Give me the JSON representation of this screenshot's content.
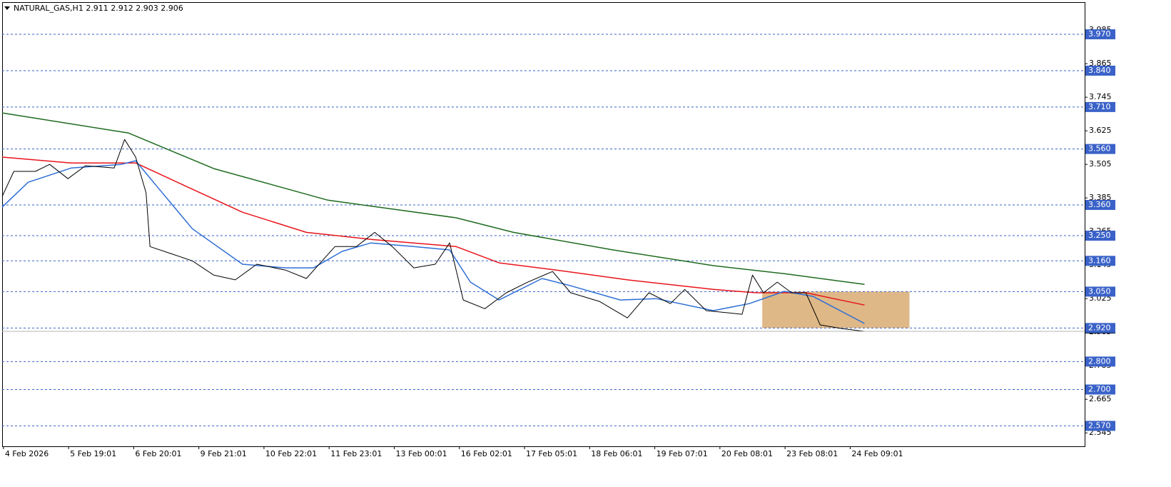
{
  "chart_data": {
    "type": "line",
    "title": "NATURAL_GAS,H1  2.911 2.912 2.903 2.906",
    "xlim": [
      -0.02,
      16.6
    ],
    "xticks": [
      {
        "value": 0,
        "label": "4 Feb 2026"
      },
      {
        "value": 1,
        "label": "5 Feb 19:01"
      },
      {
        "value": 2,
        "label": "6 Feb 20:01"
      },
      {
        "value": 3,
        "label": "9 Feb 21:01"
      },
      {
        "value": 4,
        "label": "10 Feb 22:01"
      },
      {
        "value": 5,
        "label": "11 Feb 23:01"
      },
      {
        "value": 6,
        "label": "13 Feb 00:01"
      },
      {
        "value": 7,
        "label": "16 Feb 02:01"
      },
      {
        "value": 8,
        "label": "17 Feb 05:01"
      },
      {
        "value": 9,
        "label": "18 Feb 06:01"
      },
      {
        "value": 10,
        "label": "19 Feb 07:01"
      },
      {
        "value": 11,
        "label": "20 Feb 08:01"
      },
      {
        "value": 12,
        "label": "23 Feb 08:01"
      },
      {
        "value": 13,
        "label": "24 Feb 09:01"
      }
    ],
    "ylim": [
      2.497,
      4.085
    ],
    "yticks": [
      3.985,
      3.865,
      3.745,
      3.625,
      3.505,
      3.385,
      3.265,
      3.145,
      3.025,
      2.905,
      2.785,
      2.665,
      2.545
    ],
    "levels_color": "#3a62c8",
    "levels": [
      {
        "value": 3.97,
        "label": "3.970"
      },
      {
        "value": 3.84,
        "label": "3.840"
      },
      {
        "value": 3.71,
        "label": "3.710"
      },
      {
        "value": 3.56,
        "label": "3.560"
      },
      {
        "value": 3.36,
        "label": "3.360"
      },
      {
        "value": 3.25,
        "label": "3.250"
      },
      {
        "value": 3.16,
        "label": "3.160"
      },
      {
        "value": 3.05,
        "label": "3.050"
      },
      {
        "value": 2.92,
        "label": "2.920"
      },
      {
        "value": 2.8,
        "label": "2.800"
      },
      {
        "value": 2.7,
        "label": "2.700"
      },
      {
        "value": 2.57,
        "label": "2.570"
      }
    ],
    "zone": {
      "x": [
        11.65,
        13.91
      ],
      "y": [
        2.92,
        3.05
      ],
      "color": "#deb887"
    },
    "series": [
      {
        "color": "#000000",
        "width": 1,
        "x": [
          -0.02,
          0.16,
          0.49,
          0.71,
          0.99,
          1.26,
          1.7,
          1.86,
          2.03,
          2.19,
          2.25,
          2.57,
          2.9,
          3.23,
          3.56,
          3.89,
          4.33,
          4.65,
          5.09,
          5.42,
          5.7,
          5.97,
          6.3,
          6.63,
          6.85,
          7.06,
          7.39,
          7.72,
          8.05,
          8.43,
          8.71,
          9.15,
          9.58,
          9.91,
          10.24,
          10.46,
          10.79,
          11.34,
          11.5,
          11.67,
          11.88,
          12.1,
          12.32,
          12.54,
          12.87,
          13.22
        ],
        "values": [
          3.39,
          3.48,
          3.48,
          3.505,
          3.454,
          3.5,
          3.492,
          3.594,
          3.531,
          3.403,
          3.211,
          3.186,
          3.16,
          3.109,
          3.092,
          3.148,
          3.127,
          3.097,
          3.211,
          3.211,
          3.262,
          3.211,
          3.135,
          3.148,
          3.224,
          3.02,
          2.989,
          3.046,
          3.084,
          3.122,
          3.046,
          3.015,
          2.956,
          3.046,
          3.007,
          3.058,
          2.982,
          2.969,
          3.109,
          3.046,
          3.084,
          3.046,
          3.046,
          2.931,
          2.918,
          2.908
        ]
      },
      {
        "color": "#2f6fd6",
        "width": 1.5,
        "x": [
          -0.02,
          0.38,
          1.04,
          1.81,
          2.03,
          2.35,
          2.9,
          3.67,
          4.33,
          4.76,
          5.2,
          5.64,
          6.3,
          6.85,
          7.17,
          7.61,
          8.27,
          8.71,
          9.47,
          10.02,
          10.9,
          11.45,
          11.99,
          12.43,
          13.22
        ],
        "values": [
          3.352,
          3.441,
          3.492,
          3.505,
          3.518,
          3.428,
          3.275,
          3.148,
          3.135,
          3.135,
          3.194,
          3.224,
          3.211,
          3.199,
          3.084,
          3.02,
          3.097,
          3.071,
          3.02,
          3.025,
          2.982,
          3.007,
          3.051,
          3.033,
          2.936
        ]
      },
      {
        "color": "#e8141a",
        "width": 1.5,
        "x": [
          -0.02,
          1.04,
          2.03,
          2.79,
          3.67,
          4.65,
          5.64,
          6.95,
          7.61,
          8.49,
          9.58,
          10.9,
          11.56,
          12.32,
          13.22
        ],
        "values": [
          3.531,
          3.51,
          3.51,
          3.428,
          3.334,
          3.262,
          3.237,
          3.211,
          3.153,
          3.127,
          3.092,
          3.058,
          3.046,
          3.046,
          3.002
        ]
      },
      {
        "color": "#1e6b1e",
        "width": 1.5,
        "x": [
          -0.02,
          1.92,
          3.23,
          4.98,
          6.95,
          7.83,
          9.36,
          10.9,
          11.99,
          13.22
        ],
        "values": [
          3.689,
          3.617,
          3.49,
          3.377,
          3.314,
          3.262,
          3.199,
          3.143,
          3.114,
          3.076
        ]
      }
    ]
  }
}
